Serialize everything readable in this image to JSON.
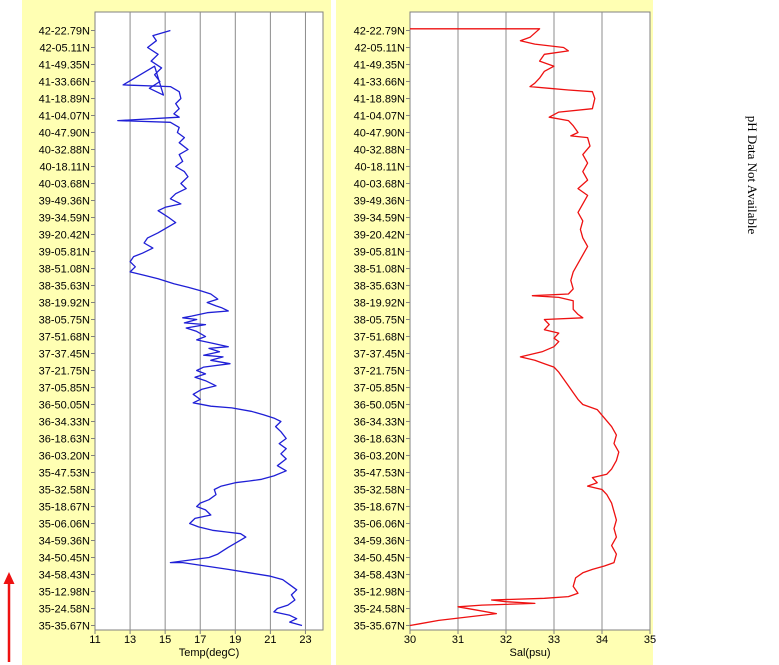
{
  "note": "pH Data Not Available",
  "chart_data": [
    {
      "type": "line",
      "xlabel": "Temp(degC)",
      "ylabel": "",
      "title": "",
      "xlim": [
        11,
        24
      ],
      "xticks": [
        11,
        13,
        15,
        17,
        19,
        21,
        23
      ],
      "grid": true,
      "color": "#1f1fd6",
      "y_categories": [
        "42-22.79N",
        "42-05.11N",
        "41-49.35N",
        "41-33.66N",
        "41-18.89N",
        "41-04.07N",
        "40-47.90N",
        "40-32.88N",
        "40-18.11N",
        "40-03.68N",
        "39-49.36N",
        "39-34.59N",
        "39-20.42N",
        "39-05.81N",
        "38-51.08N",
        "38-35.63N",
        "38-19.92N",
        "38-05.75N",
        "37-51.68N",
        "37-37.45N",
        "37-21.75N",
        "37-05.85N",
        "36-50.05N",
        "36-34.33N",
        "36-18.63N",
        "36-03.20N",
        "35-47.53N",
        "35-32.58N",
        "35-18.67N",
        "35-06.06N",
        "34-59.36N",
        "34-50.45N",
        "34-58.43N",
        "35-12.98N",
        "35-24.58N",
        "35-35.67N"
      ],
      "series": [
        {
          "points": [
            [
              15.3,
              0.0
            ],
            [
              14.3,
              0.3
            ],
            [
              14.5,
              0.6
            ],
            [
              14.0,
              1.0
            ],
            [
              14.6,
              1.4
            ],
            [
              14.2,
              1.8
            ],
            [
              14.8,
              2.2
            ],
            [
              14.4,
              2.6
            ],
            [
              14.7,
              3.0
            ],
            [
              14.1,
              3.4
            ],
            [
              14.9,
              3.8
            ],
            [
              14.4,
              2.1
            ],
            [
              12.6,
              3.2
            ],
            [
              15.3,
              3.3
            ],
            [
              15.8,
              3.6
            ],
            [
              15.9,
              4.0
            ],
            [
              15.6,
              4.3
            ],
            [
              15.8,
              4.6
            ],
            [
              15.5,
              4.9
            ],
            [
              15.8,
              5.1
            ],
            [
              12.3,
              5.3
            ],
            [
              15.3,
              5.4
            ],
            [
              15.8,
              5.7
            ],
            [
              15.7,
              6.0
            ],
            [
              16.1,
              6.3
            ],
            [
              15.8,
              6.6
            ],
            [
              16.3,
              7.0
            ],
            [
              15.8,
              7.3
            ],
            [
              16.0,
              7.7
            ],
            [
              15.6,
              8.0
            ],
            [
              16.1,
              8.3
            ],
            [
              16.3,
              8.6
            ],
            [
              15.9,
              9.0
            ],
            [
              16.2,
              9.3
            ],
            [
              15.6,
              9.6
            ],
            [
              15.3,
              9.9
            ],
            [
              15.9,
              10.2
            ],
            [
              15.0,
              10.4
            ],
            [
              14.6,
              10.6
            ],
            [
              14.9,
              10.8
            ],
            [
              15.2,
              11.0
            ],
            [
              15.6,
              11.3
            ],
            [
              15.1,
              11.6
            ],
            [
              14.6,
              11.9
            ],
            [
              14.0,
              12.2
            ],
            [
              13.8,
              12.5
            ],
            [
              14.3,
              12.8
            ],
            [
              13.7,
              13.1
            ],
            [
              13.2,
              13.3
            ],
            [
              13.0,
              13.6
            ],
            [
              13.3,
              13.9
            ],
            [
              13.0,
              14.2
            ],
            [
              13.8,
              14.4
            ],
            [
              14.6,
              14.6
            ],
            [
              15.5,
              14.9
            ],
            [
              16.3,
              15.1
            ],
            [
              17.0,
              15.3
            ],
            [
              17.6,
              15.5
            ],
            [
              18.0,
              15.8
            ],
            [
              17.4,
              16.0
            ],
            [
              17.9,
              16.2
            ],
            [
              18.2,
              16.3
            ],
            [
              18.6,
              16.5
            ],
            [
              17.4,
              16.6
            ],
            [
              16.5,
              16.8
            ],
            [
              16.0,
              16.9
            ],
            [
              16.8,
              17.0
            ],
            [
              16.1,
              17.2
            ],
            [
              17.3,
              17.3
            ],
            [
              16.2,
              17.5
            ],
            [
              16.8,
              17.7
            ],
            [
              17.3,
              18.0
            ],
            [
              16.8,
              18.2
            ],
            [
              17.7,
              18.4
            ],
            [
              18.6,
              18.6
            ],
            [
              17.5,
              18.7
            ],
            [
              18.1,
              18.9
            ],
            [
              17.2,
              19.1
            ],
            [
              18.3,
              19.2
            ],
            [
              17.6,
              19.4
            ],
            [
              18.7,
              19.6
            ],
            [
              17.2,
              19.8
            ],
            [
              16.8,
              20.0
            ],
            [
              17.3,
              20.2
            ],
            [
              16.7,
              20.4
            ],
            [
              17.3,
              20.6
            ],
            [
              17.9,
              20.9
            ],
            [
              17.1,
              21.1
            ],
            [
              16.6,
              21.4
            ],
            [
              17.0,
              21.7
            ],
            [
              16.6,
              21.9
            ],
            [
              17.6,
              22.1
            ],
            [
              18.8,
              22.2
            ],
            [
              19.9,
              22.4
            ],
            [
              20.6,
              22.6
            ],
            [
              21.2,
              22.8
            ],
            [
              21.6,
              23.0
            ],
            [
              21.3,
              23.3
            ],
            [
              21.6,
              23.6
            ],
            [
              21.9,
              24.0
            ],
            [
              21.5,
              24.3
            ],
            [
              21.9,
              24.6
            ],
            [
              21.6,
              24.9
            ],
            [
              21.9,
              25.2
            ],
            [
              21.4,
              25.6
            ],
            [
              21.9,
              25.9
            ],
            [
              21.2,
              26.2
            ],
            [
              20.5,
              26.4
            ],
            [
              19.8,
              26.5
            ],
            [
              19.0,
              26.6
            ],
            [
              18.2,
              26.8
            ],
            [
              17.8,
              27.0
            ],
            [
              17.9,
              27.3
            ],
            [
              17.5,
              27.6
            ],
            [
              17.0,
              27.8
            ],
            [
              16.8,
              28.0
            ],
            [
              17.3,
              28.2
            ],
            [
              17.6,
              28.5
            ],
            [
              16.7,
              28.7
            ],
            [
              16.4,
              29.0
            ],
            [
              16.9,
              29.2
            ],
            [
              17.7,
              29.4
            ],
            [
              18.5,
              29.5
            ],
            [
              19.3,
              29.6
            ],
            [
              19.6,
              29.8
            ],
            [
              19.1,
              30.1
            ],
            [
              18.6,
              30.4
            ],
            [
              18.3,
              30.6
            ],
            [
              18.0,
              30.8
            ],
            [
              17.5,
              31.0
            ],
            [
              15.3,
              31.3
            ],
            [
              16.0,
              31.3
            ],
            [
              17.3,
              31.5
            ],
            [
              18.6,
              31.7
            ],
            [
              19.8,
              31.9
            ],
            [
              21.0,
              32.1
            ],
            [
              21.7,
              32.3
            ],
            [
              22.1,
              32.6
            ],
            [
              22.5,
              32.9
            ],
            [
              22.2,
              33.2
            ],
            [
              22.4,
              33.5
            ],
            [
              22.0,
              33.8
            ],
            [
              21.4,
              34.0
            ],
            [
              21.2,
              34.2
            ],
            [
              22.1,
              34.4
            ],
            [
              22.5,
              34.6
            ],
            [
              22.1,
              34.8
            ],
            [
              22.8,
              35.0
            ]
          ]
        }
      ]
    },
    {
      "type": "line",
      "xlabel": "Sal(psu)",
      "ylabel": "",
      "title": "",
      "xlim": [
        30,
        35
      ],
      "xticks": [
        30,
        31,
        32,
        33,
        34,
        35
      ],
      "grid": true,
      "color": "#ee1111",
      "y_categories": [
        "42-22.79N",
        "42-05.11N",
        "41-49.35N",
        "41-33.66N",
        "41-18.89N",
        "41-04.07N",
        "40-47.90N",
        "40-32.88N",
        "40-18.11N",
        "40-03.68N",
        "39-49.36N",
        "39-34.59N",
        "39-20.42N",
        "39-05.81N",
        "38-51.08N",
        "38-35.63N",
        "38-19.92N",
        "38-05.75N",
        "37-51.68N",
        "37-37.45N",
        "37-21.75N",
        "37-05.85N",
        "36-50.05N",
        "36-34.33N",
        "36-18.63N",
        "36-03.20N",
        "35-47.53N",
        "35-32.58N",
        "35-18.67N",
        "35-06.06N",
        "34-59.36N",
        "34-50.45N",
        "34-58.43N",
        "35-12.98N",
        "35-24.58N",
        "35-35.67N"
      ],
      "series": [
        {
          "points": [
            [
              30.0,
              -0.1
            ],
            [
              32.7,
              -0.1
            ],
            [
              32.5,
              0.4
            ],
            [
              32.3,
              0.6
            ],
            [
              32.6,
              0.8
            ],
            [
              33.2,
              1.0
            ],
            [
              33.3,
              1.2
            ],
            [
              32.8,
              1.4
            ],
            [
              32.7,
              1.8
            ],
            [
              33.0,
              2.1
            ],
            [
              32.8,
              2.4
            ],
            [
              32.7,
              2.8
            ],
            [
              32.6,
              3.1
            ],
            [
              32.5,
              3.3
            ],
            [
              32.9,
              3.4
            ],
            [
              33.3,
              3.5
            ],
            [
              33.8,
              3.6
            ],
            [
              33.85,
              4.0
            ],
            [
              33.8,
              4.6
            ],
            [
              33.1,
              4.8
            ],
            [
              32.9,
              5.1
            ],
            [
              33.3,
              5.3
            ],
            [
              33.4,
              5.6
            ],
            [
              33.5,
              6.0
            ],
            [
              33.35,
              6.2
            ],
            [
              33.7,
              6.3
            ],
            [
              33.75,
              6.8
            ],
            [
              33.6,
              7.3
            ],
            [
              33.7,
              7.8
            ],
            [
              33.6,
              8.3
            ],
            [
              33.7,
              8.8
            ],
            [
              33.5,
              9.3
            ],
            [
              33.7,
              9.7
            ],
            [
              33.6,
              10.2
            ],
            [
              33.5,
              10.7
            ],
            [
              33.6,
              11.2
            ],
            [
              33.55,
              11.7
            ],
            [
              33.6,
              12.2
            ],
            [
              33.7,
              12.7
            ],
            [
              33.6,
              13.2
            ],
            [
              33.5,
              13.7
            ],
            [
              33.4,
              14.2
            ],
            [
              33.35,
              14.7
            ],
            [
              33.4,
              15.2
            ],
            [
              33.3,
              15.5
            ],
            [
              32.55,
              15.6
            ],
            [
              33.1,
              15.7
            ],
            [
              33.4,
              15.9
            ],
            [
              33.4,
              16.4
            ],
            [
              33.5,
              16.7
            ],
            [
              33.6,
              16.9
            ],
            [
              32.8,
              17.0
            ],
            [
              32.9,
              17.3
            ],
            [
              32.8,
              17.6
            ],
            [
              33.1,
              17.8
            ],
            [
              33.0,
              18.1
            ],
            [
              33.1,
              18.3
            ],
            [
              33.0,
              18.6
            ],
            [
              32.75,
              18.9
            ],
            [
              32.3,
              19.2
            ],
            [
              32.6,
              19.4
            ],
            [
              32.8,
              19.6
            ],
            [
              33.0,
              19.8
            ],
            [
              33.1,
              20.1
            ],
            [
              33.2,
              20.5
            ],
            [
              33.3,
              20.9
            ],
            [
              33.4,
              21.3
            ],
            [
              33.5,
              21.7
            ],
            [
              33.6,
              22.0
            ],
            [
              33.9,
              22.3
            ],
            [
              34.05,
              22.8
            ],
            [
              34.2,
              23.3
            ],
            [
              34.3,
              23.8
            ],
            [
              34.25,
              24.3
            ],
            [
              34.35,
              24.8
            ],
            [
              34.3,
              25.3
            ],
            [
              34.2,
              25.8
            ],
            [
              34.1,
              26.1
            ],
            [
              33.8,
              26.3
            ],
            [
              33.9,
              26.6
            ],
            [
              33.7,
              26.8
            ],
            [
              34.0,
              27.0
            ],
            [
              34.1,
              27.3
            ],
            [
              34.2,
              27.8
            ],
            [
              34.25,
              28.3
            ],
            [
              34.3,
              28.8
            ],
            [
              34.25,
              29.3
            ],
            [
              34.3,
              29.8
            ],
            [
              34.2,
              30.3
            ],
            [
              34.3,
              30.8
            ],
            [
              34.25,
              31.3
            ],
            [
              34.05,
              31.5
            ],
            [
              33.8,
              31.7
            ],
            [
              33.6,
              31.9
            ],
            [
              33.45,
              32.2
            ],
            [
              33.4,
              32.7
            ],
            [
              33.5,
              33.1
            ],
            [
              33.3,
              33.3
            ],
            [
              32.8,
              33.4
            ],
            [
              31.7,
              33.5
            ],
            [
              32.0,
              33.6
            ],
            [
              32.6,
              33.7
            ],
            [
              31.5,
              33.8
            ],
            [
              31.0,
              33.9
            ],
            [
              31.4,
              34.1
            ],
            [
              31.8,
              34.3
            ],
            [
              31.2,
              34.5
            ],
            [
              30.6,
              34.7
            ],
            [
              30.2,
              34.9
            ],
            [
              30.0,
              35.0
            ]
          ]
        }
      ]
    }
  ]
}
